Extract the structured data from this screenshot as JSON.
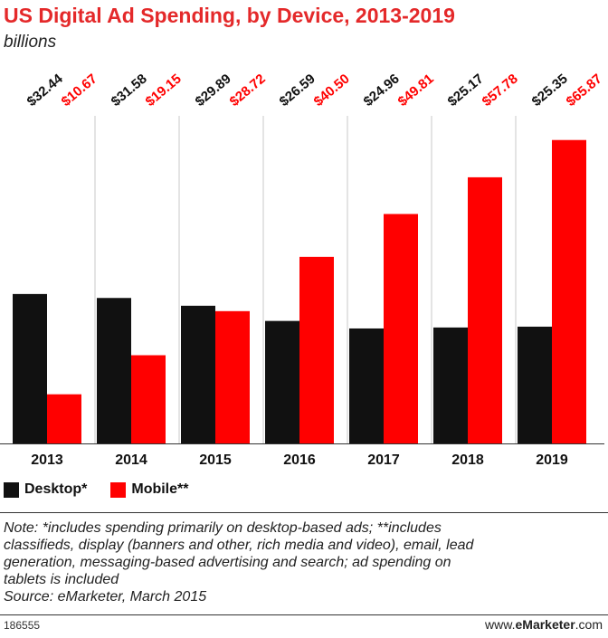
{
  "chart_data": {
    "type": "bar",
    "title": "US Digital Ad Spending, by Device, 2013-2019",
    "subtitle": "billions",
    "categories": [
      "2013",
      "2014",
      "2015",
      "2016",
      "2017",
      "2018",
      "2019"
    ],
    "series": [
      {
        "name": "Desktop*",
        "color": "#111111",
        "values": [
          32.44,
          31.58,
          29.89,
          26.59,
          24.96,
          25.17,
          25.35
        ],
        "labels": [
          "$32.44",
          "$31.58",
          "$29.89",
          "$26.59",
          "$24.96",
          "$25.17",
          "$25.35"
        ]
      },
      {
        "name": "Mobile**",
        "color": "#ff0000",
        "values": [
          10.67,
          19.15,
          28.72,
          40.5,
          49.81,
          57.78,
          65.87
        ],
        "labels": [
          "$10.67",
          "$19.15",
          "$28.72",
          "$40.50",
          "$49.81",
          "$57.78",
          "$65.87"
        ]
      }
    ],
    "ylim": [
      0,
      70
    ],
    "xlabel": "",
    "ylabel": "",
    "legend": "bottom-left"
  },
  "note_lines": [
    "Note: *includes spending primarily on desktop-based ads; **includes",
    "classifieds, display (banners and other, rich media and video), email, lead",
    "generation, messaging-based advertising and search; ad spending on",
    "tablets is included",
    "Source: eMarketer, March 2015"
  ],
  "footer": {
    "id": "186555",
    "site_prefix": "www.",
    "site_brand": "eMarketer",
    "site_suffix": ".com"
  }
}
